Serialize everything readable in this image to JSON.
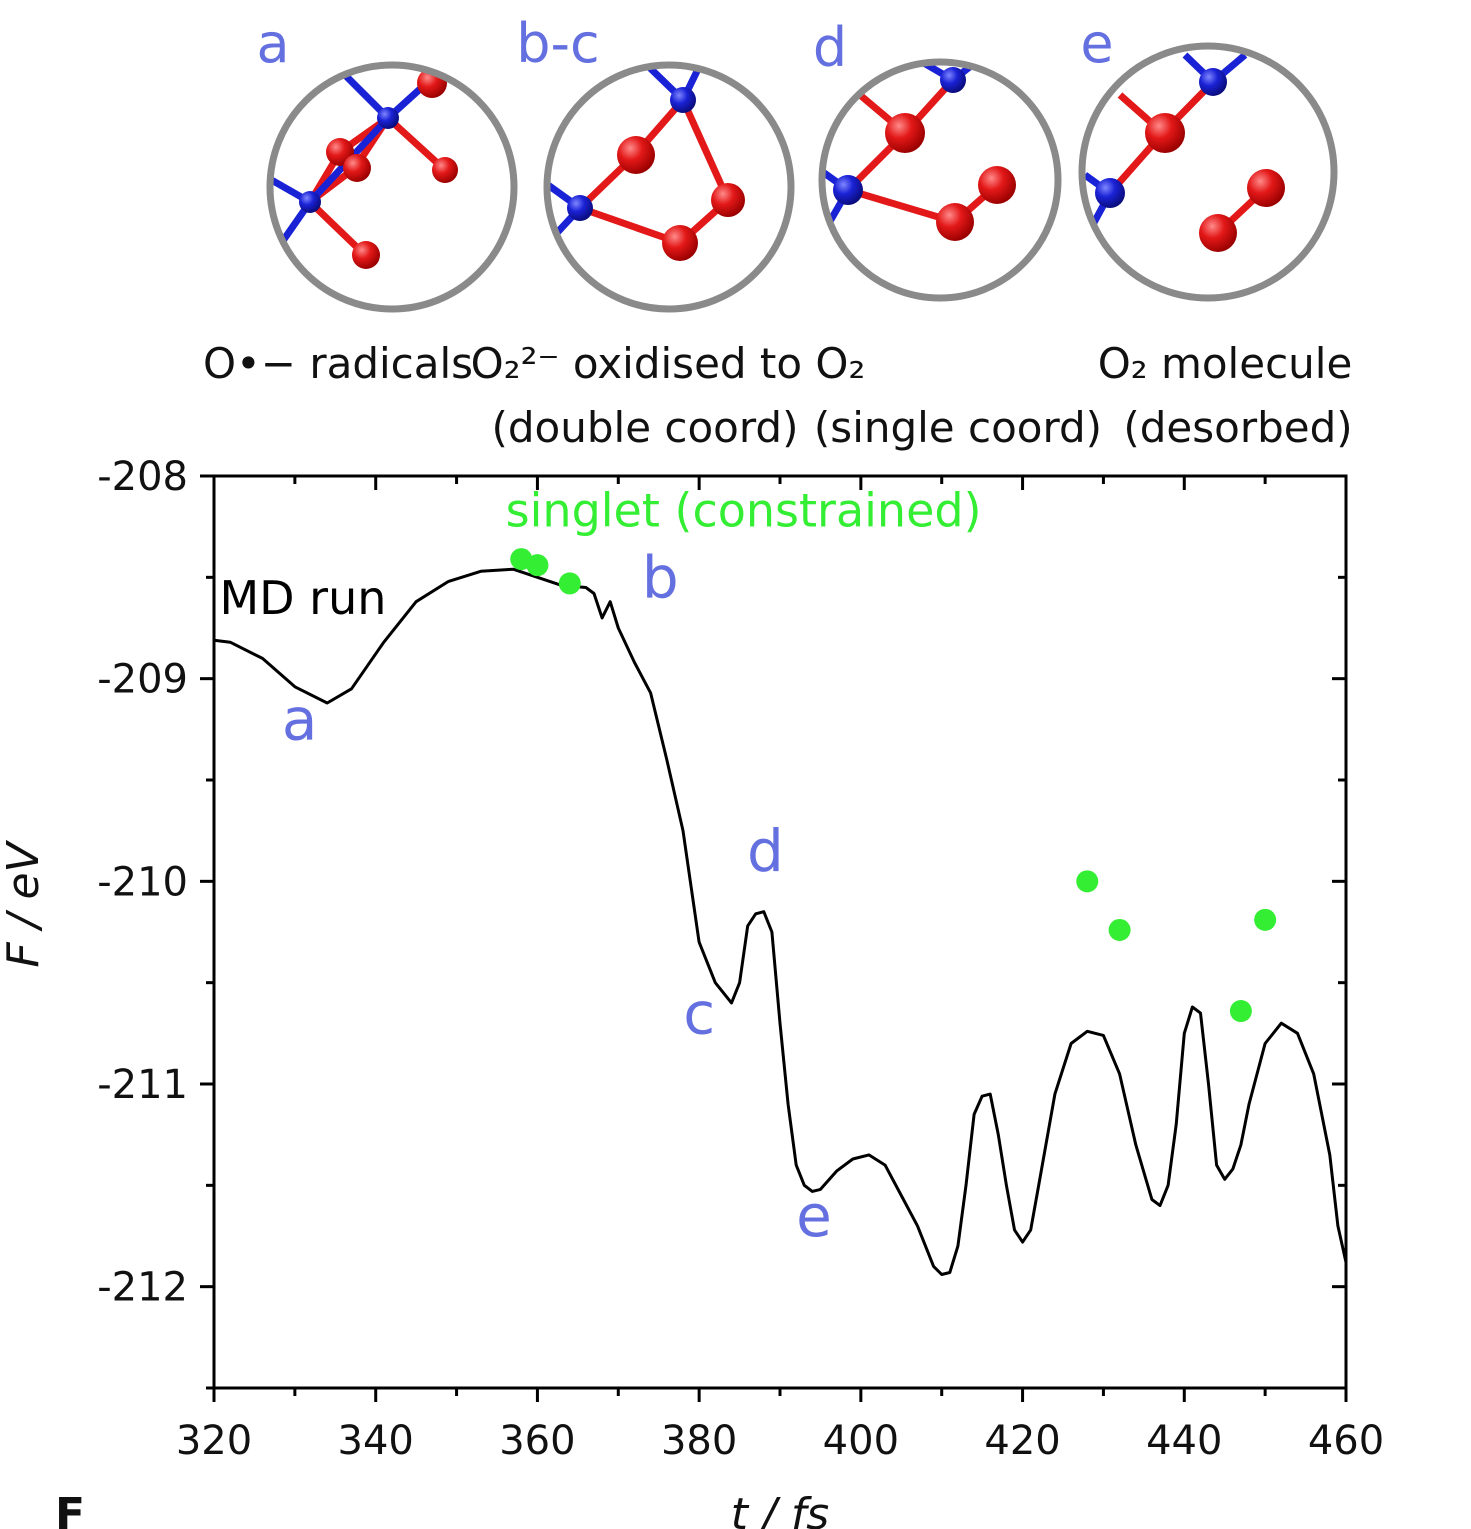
{
  "chart_data": {
    "type": "line",
    "xlabel": "t / fs",
    "ylabel": "F / eV",
    "xlim": [
      320,
      460
    ],
    "ylim": [
      -212.5,
      -208
    ],
    "xticks": [
      320,
      340,
      360,
      380,
      400,
      420,
      440,
      460
    ],
    "xtick_labels": [
      "320",
      "340",
      "360",
      "380",
      "400",
      "420",
      "440",
      "460"
    ],
    "yticks": [
      -208,
      -209,
      -210,
      -211,
      -212
    ],
    "ytick_labels": [
      "-208",
      "-209",
      "-210",
      "-211",
      "-212"
    ],
    "grid": false,
    "series": [
      {
        "name": "MD run",
        "color": "#000000",
        "x": [
          320,
          322,
          326,
          330,
          334,
          337,
          341,
          345,
          349,
          353,
          357,
          360,
          363,
          366,
          367,
          368,
          369,
          370,
          372,
          374,
          376,
          378,
          380,
          382,
          384,
          385,
          386,
          387,
          388,
          389,
          390,
          391,
          392,
          393,
          394,
          395,
          397,
          399,
          401,
          403,
          405,
          407,
          409,
          410,
          411,
          412,
          413,
          414,
          415,
          416,
          417,
          418,
          419,
          420,
          421,
          422,
          424,
          426,
          428,
          430,
          432,
          434,
          436,
          437,
          438,
          439,
          440,
          441,
          442,
          443,
          444,
          445,
          446,
          447,
          448,
          450,
          452,
          454,
          456,
          458,
          459,
          460
        ],
        "y": [
          -208.81,
          -208.82,
          -208.9,
          -209.04,
          -209.12,
          -209.05,
          -208.82,
          -208.62,
          -208.52,
          -208.47,
          -208.46,
          -208.5,
          -208.54,
          -208.55,
          -208.58,
          -208.7,
          -208.62,
          -208.75,
          -208.92,
          -209.07,
          -209.4,
          -209.75,
          -210.3,
          -210.5,
          -210.6,
          -210.5,
          -210.22,
          -210.16,
          -210.15,
          -210.25,
          -210.7,
          -211.1,
          -211.4,
          -211.5,
          -211.53,
          -211.52,
          -211.43,
          -211.37,
          -211.35,
          -211.4,
          -211.55,
          -211.7,
          -211.9,
          -211.94,
          -211.93,
          -211.8,
          -211.5,
          -211.15,
          -211.06,
          -211.05,
          -211.25,
          -211.5,
          -211.72,
          -211.78,
          -211.72,
          -211.5,
          -211.05,
          -210.8,
          -210.74,
          -210.76,
          -210.95,
          -211.3,
          -211.57,
          -211.6,
          -211.5,
          -211.2,
          -210.75,
          -210.62,
          -210.65,
          -211.0,
          -211.4,
          -211.47,
          -211.42,
          -211.3,
          -211.1,
          -210.8,
          -210.7,
          -210.75,
          -210.95,
          -211.35,
          -211.7,
          -211.88
        ]
      },
      {
        "name": "singlet (constrained)",
        "color": "#33ee33",
        "type": "scatter",
        "x": [
          358,
          360,
          364,
          428,
          432,
          447,
          450
        ],
        "y": [
          -208.41,
          -208.44,
          -208.53,
          -210.0,
          -210.24,
          -210.64,
          -210.19
        ]
      }
    ],
    "annotations": [
      {
        "text": "MD run",
        "x": 331,
        "y": -208.68,
        "color": "#000000"
      },
      {
        "text": "a",
        "x": 330.6,
        "y": -209.3,
        "color": "#6470e0"
      },
      {
        "text": "b",
        "x": 375.2,
        "y": -208.6,
        "color": "#6470e0"
      },
      {
        "text": "c",
        "x": 380,
        "y": -210.75,
        "color": "#6470e0"
      },
      {
        "text": "d",
        "x": 388.2,
        "y": -209.95,
        "color": "#6470e0"
      },
      {
        "text": "e",
        "x": 394.2,
        "y": -211.75,
        "color": "#6470e0"
      },
      {
        "text": "singlet (constrained)",
        "x": 385.5,
        "y": -208.25,
        "color": "#33ee33"
      }
    ]
  },
  "insets": [
    {
      "letter": "a",
      "caption_line1": "O•− radicals",
      "caption_line2": ""
    },
    {
      "letter": "b-c",
      "caption_line1": "O₂²⁻ oxidised to O₂",
      "caption_line2": "(double coord)"
    },
    {
      "letter": "d",
      "caption_line1": "",
      "caption_line2": "(single coord)"
    },
    {
      "letter": "e",
      "caption_line1": "O₂ molecule",
      "caption_line2": "(desorbed)"
    }
  ],
  "panel_label": "F",
  "colors": {
    "inset_label": "#6470e0",
    "oxygen_atom": "#e31818",
    "metal_atom": "#1a22d6",
    "circle_border": "#8a8a8a",
    "singlet": "#33ee33",
    "line": "#000000"
  }
}
